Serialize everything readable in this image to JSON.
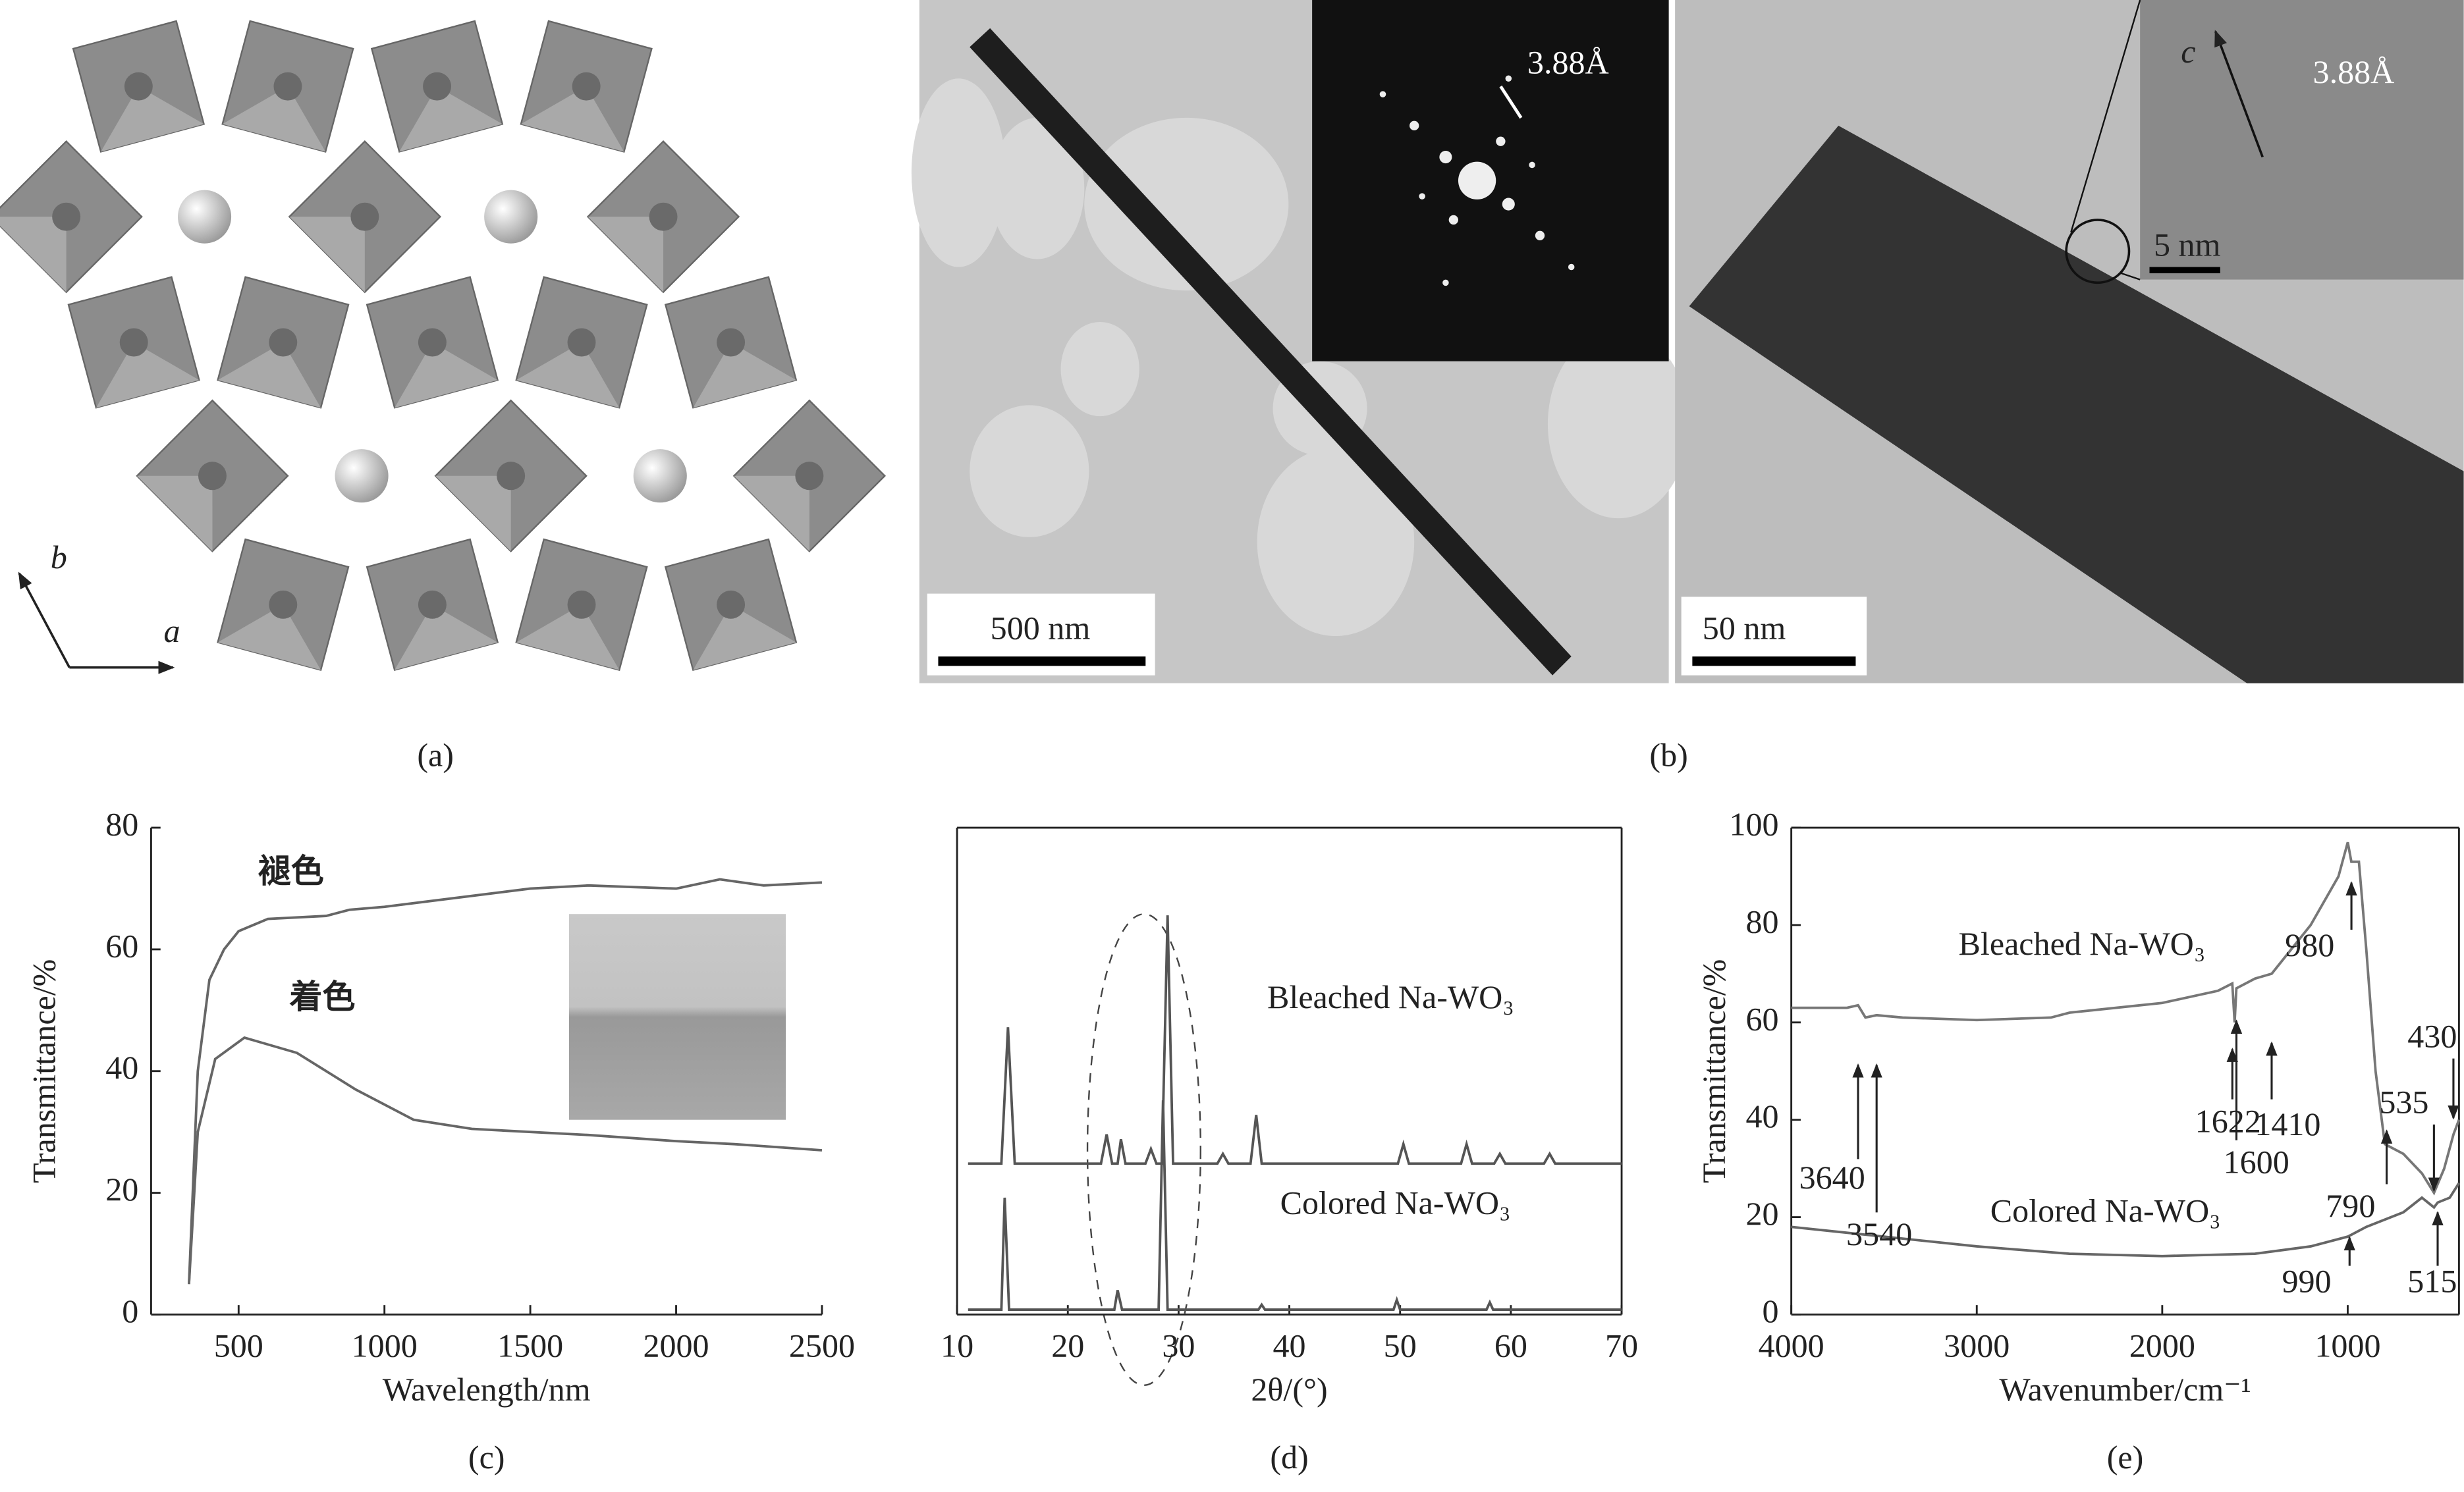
{
  "figure": {
    "panel_a": {
      "label": "(a)",
      "axis_b": "b",
      "axis_a": "a"
    },
    "panel_b": {
      "label": "(b)",
      "saed_spacing": "3.88Å",
      "scale_left": "500 nm",
      "scale_right": "50 nm",
      "axis_c": "c",
      "hrtem_spacing": "3.88Å",
      "scale_inset": "5 nm"
    }
  },
  "chart_data": [
    {
      "type": "line",
      "label": "(c)",
      "xlabel": "Wavelength/nm",
      "ylabel": "Transmittance/%",
      "xlim": [
        200,
        2500
      ],
      "ylim": [
        0,
        80
      ],
      "xticks": [
        500,
        1000,
        1500,
        2000,
        2500
      ],
      "yticks": [
        0,
        20,
        40,
        60,
        80
      ],
      "series": [
        {
          "name": "褪色",
          "color": "#666666",
          "x": [
            330,
            360,
            400,
            450,
            500,
            600,
            800,
            880,
            1000,
            1500,
            1700,
            2000,
            2150,
            2300,
            2500
          ],
          "values": [
            5,
            40,
            55,
            60,
            63,
            65,
            65.5,
            66.5,
            67,
            70,
            70.5,
            70,
            71.5,
            70.5,
            71
          ]
        },
        {
          "name": "着色",
          "color": "#666666",
          "x": [
            330,
            360,
            420,
            520,
            700,
            900,
            1100,
            1300,
            1700,
            2000,
            2200,
            2500
          ],
          "values": [
            5,
            30,
            42,
            45.5,
            43,
            37,
            32,
            30.5,
            29.5,
            28.5,
            28,
            27
          ]
        }
      ]
    },
    {
      "type": "line",
      "label": "(d)",
      "xlabel": "2θ/(°)",
      "xlim": [
        10,
        70
      ],
      "ylim": [
        0,
        100
      ],
      "xticks": [
        10,
        20,
        30,
        40,
        50,
        60,
        70
      ],
      "series": [
        {
          "name": "Bleached Na-WO₃",
          "color": "#555555",
          "x": [
            11,
            14,
            14.6,
            15.2,
            23,
            23.5,
            24,
            24.5,
            24.8,
            25.2,
            27,
            27.5,
            28,
            28.5,
            29,
            29.5,
            33.5,
            34,
            34.5,
            36.5,
            37,
            37.5,
            49.8,
            50.3,
            50.8,
            55.5,
            56,
            56.5,
            58.5,
            59,
            59.5,
            63,
            63.5,
            64,
            70
          ],
          "values": [
            31,
            31,
            59,
            31,
            31,
            37,
            31,
            31,
            36,
            31,
            31,
            34,
            31,
            31,
            82,
            31,
            31,
            33,
            31,
            31,
            41,
            31,
            31,
            35,
            31,
            31,
            35,
            31,
            31,
            33,
            31,
            31,
            33,
            31,
            31
          ]
        },
        {
          "name": "Colored Na-WO₃",
          "color": "#555555",
          "x": [
            11,
            14,
            14.3,
            14.7,
            24.2,
            24.5,
            24.9,
            28.2,
            28.6,
            29,
            37.2,
            37.5,
            37.8,
            49.4,
            49.7,
            50,
            57.8,
            58.1,
            58.4,
            70
          ],
          "values": [
            1,
            1,
            24,
            1,
            1,
            5,
            1,
            1,
            44,
            1,
            1,
            2,
            1,
            1,
            3,
            1,
            1,
            2.5,
            1,
            1
          ]
        }
      ]
    },
    {
      "type": "line",
      "label": "(e)",
      "xlabel": "Wavenumber/cm⁻¹",
      "ylabel": "Transmittance/%",
      "xlim": [
        4000,
        400
      ],
      "ylim": [
        0,
        100
      ],
      "xticks": [
        4000,
        3000,
        2000,
        1000
      ],
      "yticks": [
        0,
        20,
        40,
        60,
        80,
        100
      ],
      "series": [
        {
          "name": "Bleached Na-WO₃",
          "color": "#777777",
          "x": [
            4000,
            3700,
            3640,
            3600,
            3540,
            3400,
            3000,
            2600,
            2500,
            2000,
            1700,
            1622,
            1610,
            1600,
            1500,
            1410,
            1200,
            1050,
            1000,
            980,
            940,
            900,
            850,
            800,
            700,
            600,
            535,
            480,
            430,
            400
          ],
          "values": [
            63,
            63,
            63.5,
            61,
            61.5,
            61,
            60.5,
            61,
            62,
            64,
            66.5,
            68,
            60,
            67,
            69,
            70,
            80,
            90,
            97,
            93,
            93,
            75,
            50,
            35,
            33,
            29,
            25,
            30,
            37,
            40
          ]
        },
        {
          "name": "Colored Na-WO₃",
          "color": "#666666",
          "x": [
            4000,
            3500,
            3000,
            2500,
            2000,
            1500,
            1200,
            1000,
            900,
            700,
            600,
            535,
            515,
            450,
            400
          ],
          "values": [
            18,
            16,
            14,
            12.5,
            12,
            12.5,
            14,
            16,
            18,
            21,
            24,
            22,
            23,
            24,
            27
          ]
        }
      ],
      "peak_labels": [
        3640,
        3540,
        1622,
        1600,
        1410,
        980,
        430,
        535,
        790,
        990,
        515
      ]
    }
  ]
}
